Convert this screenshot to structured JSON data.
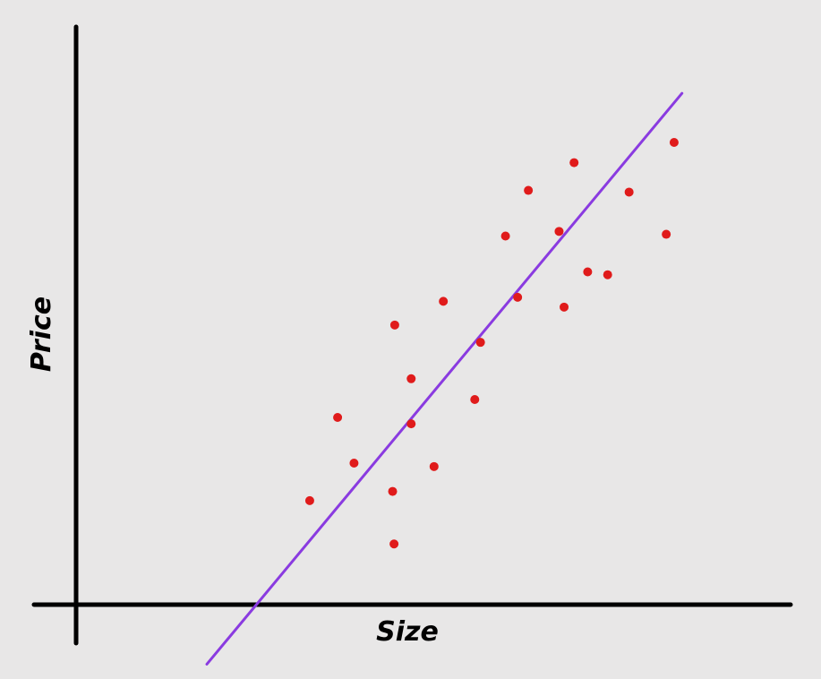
{
  "chart_data": {
    "type": "scatter",
    "xlabel": "Size",
    "ylabel": "Price",
    "grid": false,
    "xlim": [
      0,
      100
    ],
    "ylim": [
      0,
      100
    ],
    "points": [
      {
        "x": 32.7,
        "y": 18.0
      },
      {
        "x": 36.6,
        "y": 32.4
      },
      {
        "x": 38.9,
        "y": 24.5
      },
      {
        "x": 44.3,
        "y": 19.6
      },
      {
        "x": 44.5,
        "y": 10.5
      },
      {
        "x": 44.6,
        "y": 48.4
      },
      {
        "x": 46.9,
        "y": 39.1
      },
      {
        "x": 46.9,
        "y": 31.3
      },
      {
        "x": 50.1,
        "y": 23.9
      },
      {
        "x": 51.4,
        "y": 52.5
      },
      {
        "x": 55.8,
        "y": 35.5
      },
      {
        "x": 56.6,
        "y": 45.4
      },
      {
        "x": 60.1,
        "y": 63.8
      },
      {
        "x": 61.8,
        "y": 53.2
      },
      {
        "x": 63.3,
        "y": 71.7
      },
      {
        "x": 67.6,
        "y": 64.6
      },
      {
        "x": 68.3,
        "y": 51.5
      },
      {
        "x": 69.7,
        "y": 76.5
      },
      {
        "x": 71.6,
        "y": 57.6
      },
      {
        "x": 74.4,
        "y": 57.1
      },
      {
        "x": 77.4,
        "y": 71.4
      },
      {
        "x": 82.6,
        "y": 64.1
      },
      {
        "x": 83.7,
        "y": 80.0
      }
    ],
    "fit_line": {
      "from": {
        "x": 18.3,
        "y": -10.3
      },
      "to": {
        "x": 84.8,
        "y": 88.5
      }
    },
    "colors": {
      "background": "#e8e7e7",
      "axes": "#000000",
      "points": "#e01b1b",
      "fit_line": "#8a3be0"
    }
  }
}
